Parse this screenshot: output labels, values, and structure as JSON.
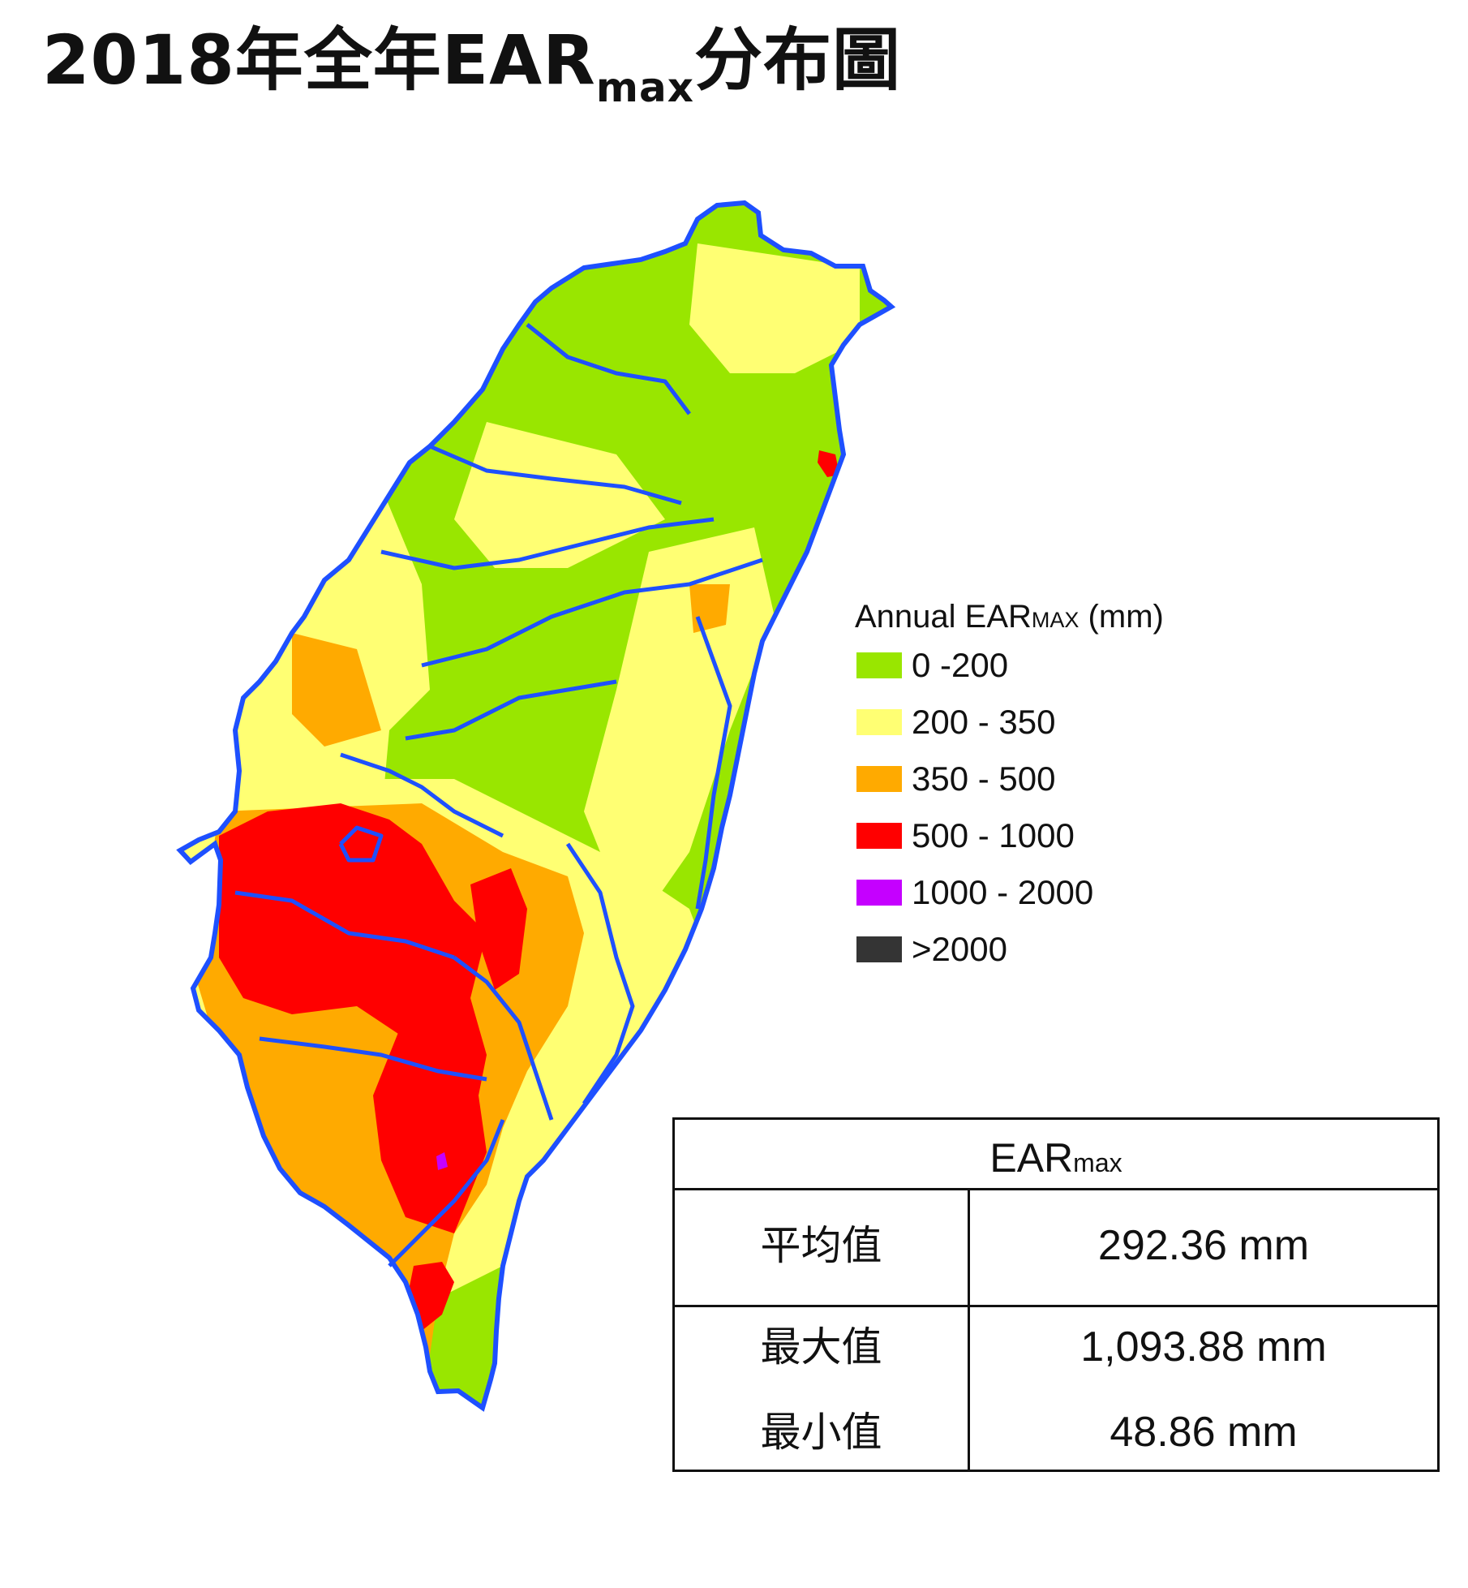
{
  "title": {
    "main": "2018年全年EAR",
    "sub": "max",
    "suffix": "分布圖"
  },
  "legend": {
    "title_main": "Annual EAR",
    "title_sub": "MAX",
    "title_suffix": " (mm)",
    "items": [
      {
        "label": "0 -200",
        "color": "#99e600"
      },
      {
        "label": "200 - 350",
        "color": "#ffff73"
      },
      {
        "label": "350 - 500",
        "color": "#ffaa00"
      },
      {
        "label": "500 - 1000",
        "color": "#ff0000"
      },
      {
        "label": "1000 - 2000",
        "color": "#c500ff"
      },
      {
        "label": ">2000",
        "color": "#343434"
      }
    ]
  },
  "map_colors": {
    "green": "#99e600",
    "yellow": "#ffff73",
    "orange": "#ffaa00",
    "red": "#ff0000",
    "purple": "#c500ff",
    "boundary": "#1e50ff"
  },
  "stats": {
    "header_main": "EAR",
    "header_sub": "max",
    "rows": [
      {
        "label": "平均值",
        "value": "292.36 mm"
      },
      {
        "label": "最大值",
        "value": "1,093.88 mm"
      },
      {
        "label": "最小值",
        "value": "48.86 mm"
      }
    ]
  }
}
